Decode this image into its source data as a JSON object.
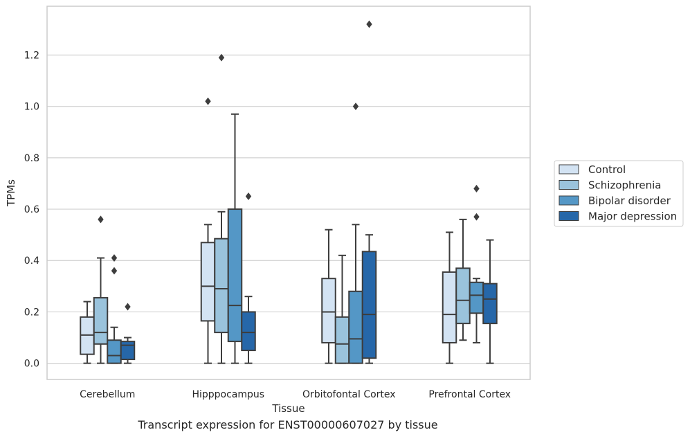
{
  "chart_data": {
    "type": "box",
    "caption": "Transcript expression for ENST00000607027 by tissue",
    "xlabel": "Tissue",
    "ylabel": "TPMs",
    "ylim": [
      -0.063,
      1.39
    ],
    "yticks": [
      0.0,
      0.2,
      0.4,
      0.6,
      0.8,
      1.0,
      1.2
    ],
    "ytick_labels": [
      "0.0",
      "0.2",
      "0.4",
      "0.6",
      "0.8",
      "1.0",
      "1.2"
    ],
    "grid": "horizontal",
    "legend_position": "center-right-outside",
    "categories": [
      "Cerebellum",
      "Hipppocampus",
      "Orbitofontal Cortex",
      "Prefrontal Cortex"
    ],
    "series": [
      {
        "name": "Control",
        "color": "#d3e3f3",
        "boxes": [
          {
            "whislo": 0.0,
            "q1": 0.035,
            "med": 0.11,
            "q3": 0.18,
            "whishi": 0.24,
            "fliers": []
          },
          {
            "whislo": 0.0,
            "q1": 0.165,
            "med": 0.3,
            "q3": 0.47,
            "whishi": 0.54,
            "fliers": [
              1.02
            ]
          },
          {
            "whislo": 0.0,
            "q1": 0.08,
            "med": 0.2,
            "q3": 0.33,
            "whishi": 0.52,
            "fliers": []
          },
          {
            "whislo": 0.0,
            "q1": 0.08,
            "med": 0.19,
            "q3": 0.355,
            "whishi": 0.51,
            "fliers": []
          }
        ]
      },
      {
        "name": "Schizophrenia",
        "color": "#9ac3dc",
        "boxes": [
          {
            "whislo": 0.0,
            "q1": 0.075,
            "med": 0.12,
            "q3": 0.255,
            "whishi": 0.41,
            "fliers": [
              0.56
            ]
          },
          {
            "whislo": 0.0,
            "q1": 0.12,
            "med": 0.29,
            "q3": 0.485,
            "whishi": 0.59,
            "fliers": [
              1.19
            ]
          },
          {
            "whislo": 0.0,
            "q1": 0.0,
            "med": 0.075,
            "q3": 0.18,
            "whishi": 0.42,
            "fliers": []
          },
          {
            "whislo": 0.09,
            "q1": 0.155,
            "med": 0.245,
            "q3": 0.37,
            "whishi": 0.56,
            "fliers": []
          }
        ]
      },
      {
        "name": "Bipolar disorder",
        "color": "#5497c6",
        "boxes": [
          {
            "whislo": 0.0,
            "q1": 0.0,
            "med": 0.03,
            "q3": 0.09,
            "whishi": 0.14,
            "fliers": [
              0.36,
              0.41
            ]
          },
          {
            "whislo": 0.0,
            "q1": 0.085,
            "med": 0.225,
            "q3": 0.6,
            "whishi": 0.97,
            "fliers": []
          },
          {
            "whislo": 0.0,
            "q1": 0.0,
            "med": 0.095,
            "q3": 0.28,
            "whishi": 0.54,
            "fliers": [
              1.0
            ]
          },
          {
            "whislo": 0.08,
            "q1": 0.195,
            "med": 0.265,
            "q3": 0.315,
            "whishi": 0.33,
            "fliers": [
              0.57,
              0.68
            ]
          }
        ]
      },
      {
        "name": "Major depression",
        "color": "#2667a9",
        "boxes": [
          {
            "whislo": 0.0,
            "q1": 0.015,
            "med": 0.07,
            "q3": 0.085,
            "whishi": 0.1,
            "fliers": [
              0.22
            ]
          },
          {
            "whislo": 0.0,
            "q1": 0.05,
            "med": 0.12,
            "q3": 0.2,
            "whishi": 0.26,
            "fliers": [
              0.65
            ]
          },
          {
            "whislo": 0.0,
            "q1": 0.02,
            "med": 0.19,
            "q3": 0.435,
            "whishi": 0.5,
            "fliers": [
              1.32
            ]
          },
          {
            "whislo": 0.0,
            "q1": 0.155,
            "med": 0.25,
            "q3": 0.31,
            "whishi": 0.48,
            "fliers": []
          }
        ]
      }
    ]
  }
}
